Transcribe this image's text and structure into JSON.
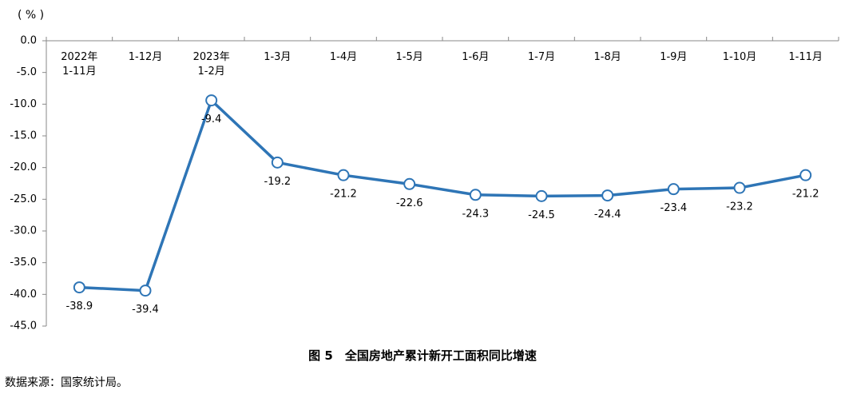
{
  "chart_data": {
    "type": "line",
    "title": "图 5　全国房地产累计新开工面积同比增速",
    "y_label": "( % )",
    "source": "数据来源：国家统计局。",
    "categories": [
      "2022年\n1-11月",
      "1-12月",
      "2023年\n1-2月",
      "1-3月",
      "1-4月",
      "1-5月",
      "1-6月",
      "1-7月",
      "1-8月",
      "1-9月",
      "1-10月",
      "1-11月"
    ],
    "series": [
      {
        "name": "全国房地产累计新开工面积同比增速",
        "color": "#2e75b6",
        "values": [
          -38.9,
          -39.4,
          -9.4,
          -19.2,
          -21.2,
          -22.6,
          -24.3,
          -24.5,
          -24.4,
          -23.4,
          -23.2,
          -21.2
        ]
      }
    ],
    "ylim": [
      -45,
      0
    ],
    "yticks": [
      {
        "value": 0,
        "label": "0.0"
      },
      {
        "value": -5,
        "label": "-5.0"
      },
      {
        "value": -10,
        "label": "-10.0"
      },
      {
        "value": -15,
        "label": "-15.0"
      },
      {
        "value": -20,
        "label": "-20.0"
      },
      {
        "value": -25,
        "label": "-25.0"
      },
      {
        "value": -30,
        "label": "-30.0"
      },
      {
        "value": -35,
        "label": "-35.0"
      },
      {
        "value": -40,
        "label": "-40.0"
      },
      {
        "value": -45,
        "label": "-45.0"
      }
    ],
    "grid": false
  }
}
